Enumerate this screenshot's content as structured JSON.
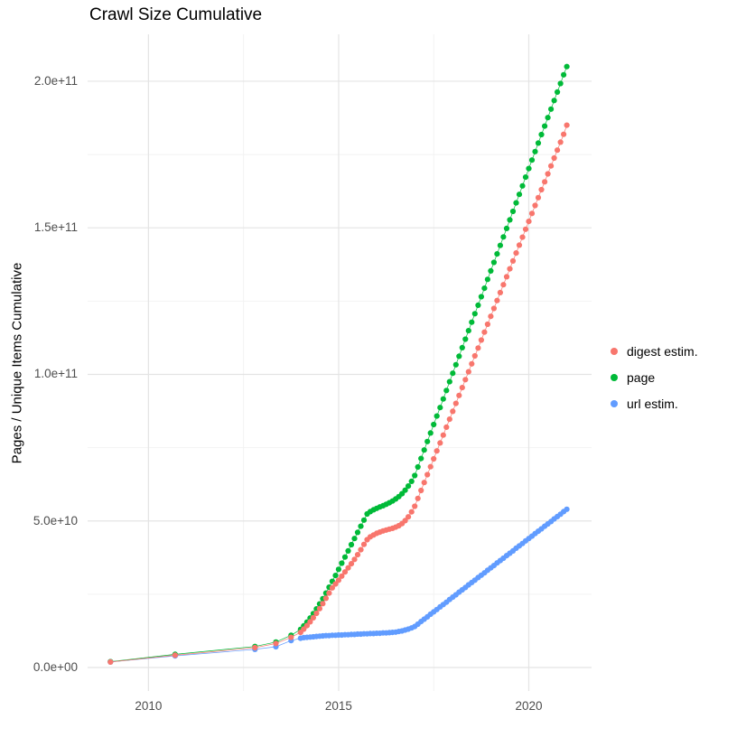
{
  "title": "Crawl Size Cumulative",
  "y_axis_label": "Pages / Unique Items Cumulative",
  "legend": {
    "position": "right",
    "items": [
      {
        "label": "digest estim."
      },
      {
        "label": "page"
      },
      {
        "label": "url estim."
      }
    ]
  },
  "chart_data": {
    "type": "scatter",
    "title": "Crawl Size Cumulative",
    "x_label": "",
    "y_label": "Pages / Unique Items Cumulative",
    "grid": true,
    "legend_position": "right",
    "x_range": [
      2008.4,
      2021.65
    ],
    "y_range": [
      -8000000000.0,
      216000000000.0
    ],
    "x_ticks": {
      "values": [
        2010,
        2015,
        2020
      ],
      "labels": [
        "2010",
        "2015",
        "2020"
      ]
    },
    "y_ticks": {
      "values": [
        0,
        50000000000.0,
        100000000000.0,
        150000000000.0,
        200000000000.0
      ],
      "labels": [
        "0.0e+00",
        "5.0e+10",
        "1.0e+11",
        "1.5e+11",
        "2.0e+11"
      ]
    },
    "x_minor": [
      2012.5,
      2017.5
    ],
    "y_minor": [
      25000000000.0,
      75000000000.0,
      125000000000.0,
      175000000000.0
    ],
    "value_scale": 1000000000.0,
    "x": [
      2009.0,
      2010.7,
      2012.8,
      2013.35,
      2013.75,
      2014.0,
      2014.083,
      2014.167,
      2014.25,
      2014.333,
      2014.417,
      2014.5,
      2014.583,
      2014.667,
      2014.75,
      2014.833,
      2014.917,
      2015.0,
      2015.083,
      2015.167,
      2015.25,
      2015.333,
      2015.417,
      2015.5,
      2015.583,
      2015.667,
      2015.75,
      2015.833,
      2015.917,
      2016.0,
      2016.083,
      2016.167,
      2016.25,
      2016.333,
      2016.417,
      2016.5,
      2016.583,
      2016.667,
      2016.75,
      2016.833,
      2016.917,
      2017.0,
      2017.083,
      2017.167,
      2017.25,
      2017.333,
      2017.417,
      2017.5,
      2017.583,
      2017.667,
      2017.75,
      2017.833,
      2017.917,
      2018.0,
      2018.083,
      2018.167,
      2018.25,
      2018.333,
      2018.417,
      2018.5,
      2018.583,
      2018.667,
      2018.75,
      2018.833,
      2018.917,
      2019.0,
      2019.083,
      2019.167,
      2019.25,
      2019.333,
      2019.417,
      2019.5,
      2019.583,
      2019.667,
      2019.75,
      2019.833,
      2019.917,
      2020.0,
      2020.083,
      2020.167,
      2020.25,
      2020.333,
      2020.417,
      2020.5,
      2020.583,
      2020.667,
      2020.75,
      2020.833,
      2020.917,
      2021.0
    ],
    "series": [
      {
        "name": "digest estim.",
        "id": "digest-estim",
        "color": "#F8766D",
        "values_e9": [
          1.9,
          4.2,
          6.8,
          8.2,
          10.3,
          12.0,
          13.1,
          14.3,
          15.6,
          17.0,
          18.5,
          20.1,
          21.8,
          23.6,
          25.4,
          27.2,
          28.5,
          29.8,
          31.2,
          32.6,
          34.0,
          35.4,
          36.9,
          38.5,
          40.2,
          42.0,
          43.6,
          44.6,
          45.2,
          45.8,
          46.2,
          46.6,
          46.9,
          47.2,
          47.5,
          47.9,
          48.4,
          49.1,
          50.1,
          51.4,
          53.1,
          55.0,
          57.7,
          60.4,
          63.1,
          65.8,
          68.5,
          71.2,
          73.9,
          76.6,
          79.3,
          82.0,
          84.7,
          87.4,
          90.1,
          92.8,
          95.5,
          98.2,
          100.9,
          103.6,
          106.3,
          109.0,
          111.7,
          114.4,
          117.1,
          119.8,
          122.5,
          125.2,
          127.9,
          130.6,
          133.3,
          136.0,
          138.7,
          141.4,
          144.1,
          146.8,
          149.5,
          152.2,
          154.9,
          157.6,
          160.3,
          163.0,
          165.7,
          168.4,
          171.1,
          173.8,
          176.5,
          179.2,
          181.9,
          185.0
        ]
      },
      {
        "name": "page",
        "id": "page",
        "color": "#00BA38",
        "values_e9": [
          2.0,
          4.5,
          7.2,
          8.7,
          11.0,
          13.0,
          14.2,
          15.5,
          16.9,
          18.4,
          20.0,
          21.7,
          23.5,
          25.4,
          27.4,
          29.4,
          31.4,
          33.5,
          35.6,
          37.7,
          39.8,
          41.9,
          44.0,
          46.1,
          48.2,
          50.3,
          52.4,
          53.2,
          53.8,
          54.3,
          54.8,
          55.2,
          55.7,
          56.2,
          56.8,
          57.5,
          58.3,
          59.3,
          60.5,
          61.9,
          63.5,
          65.5,
          68.4,
          71.3,
          74.2,
          77.1,
          80.0,
          82.9,
          85.8,
          88.7,
          91.6,
          94.5,
          97.5,
          100.4,
          103.3,
          106.2,
          109.1,
          112.0,
          114.9,
          117.8,
          120.7,
          123.6,
          126.5,
          129.4,
          132.4,
          135.3,
          138.2,
          141.1,
          144.0,
          146.9,
          149.8,
          152.7,
          155.6,
          158.5,
          161.4,
          164.3,
          167.3,
          170.2,
          173.1,
          176.0,
          178.9,
          181.8,
          184.7,
          187.6,
          190.5,
          193.4,
          196.3,
          199.2,
          202.2,
          205.0
        ]
      },
      {
        "name": "url estim.",
        "id": "url-estim",
        "color": "#619CFF",
        "values_e9": [
          1.9,
          4.0,
          6.2,
          7.1,
          9.2,
          10.0,
          10.2,
          10.3,
          10.4,
          10.5,
          10.6,
          10.7,
          10.8,
          10.9,
          10.9,
          11.0,
          11.0,
          11.1,
          11.1,
          11.2,
          11.2,
          11.3,
          11.3,
          11.4,
          11.4,
          11.5,
          11.5,
          11.6,
          11.6,
          11.7,
          11.7,
          11.8,
          11.8,
          11.9,
          12.0,
          12.1,
          12.3,
          12.5,
          12.8,
          13.1,
          13.5,
          14.0,
          14.8,
          15.7,
          16.5,
          17.3,
          18.2,
          19.0,
          19.8,
          20.7,
          21.5,
          22.3,
          23.2,
          24.0,
          24.8,
          25.7,
          26.5,
          27.3,
          28.2,
          29.0,
          29.8,
          30.7,
          31.5,
          32.3,
          33.2,
          34.0,
          34.8,
          35.7,
          36.5,
          37.3,
          38.2,
          39.0,
          39.8,
          40.7,
          41.5,
          42.3,
          43.2,
          44.0,
          44.8,
          45.7,
          46.5,
          47.3,
          48.2,
          49.0,
          49.8,
          50.7,
          51.5,
          52.3,
          53.2,
          54.0
        ]
      }
    ]
  }
}
